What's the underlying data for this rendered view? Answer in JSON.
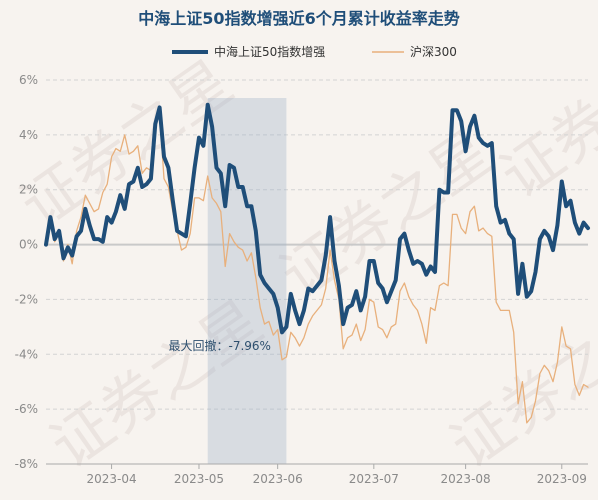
{
  "chart_data": {
    "type": "line",
    "title": "中海上证50指数增强近6个月累计收益率走势",
    "ylim": [
      -8,
      6
    ],
    "yticks": [
      -8,
      -6,
      -4,
      -2,
      0,
      2,
      4,
      6
    ],
    "ytick_labels": [
      "-8%",
      "-6%",
      "-4%",
      "-2%",
      "0%",
      "2%",
      "4%",
      "6%"
    ],
    "xticks": [
      {
        "label": "2023-04",
        "index": 15
      },
      {
        "label": "2023-05",
        "index": 35
      },
      {
        "label": "2023-06",
        "index": 53
      },
      {
        "label": "2023-07",
        "index": 75
      },
      {
        "label": "2023-08",
        "index": 96
      },
      {
        "label": "2023-09",
        "index": 118
      }
    ],
    "n_points": 125,
    "legend_position": "top-center",
    "grid": true,
    "series": [
      {
        "name": "中海上证50指数增强",
        "color": "#1f4e79",
        "values": [
          0,
          1,
          0.2,
          0.5,
          -0.5,
          -0.1,
          -0.4,
          0.3,
          0.5,
          1.3,
          0.7,
          0.2,
          0.2,
          0.1,
          1,
          0.8,
          1.2,
          1.8,
          1.3,
          2.2,
          2.3,
          2.8,
          2.1,
          2.2,
          2.4,
          4.4,
          5,
          3.2,
          2.8,
          1.6,
          0.5,
          0.4,
          0.3,
          1.5,
          2.8,
          3.9,
          3.6,
          5.1,
          4.3,
          2.8,
          2.6,
          1.4,
          2.9,
          2.8,
          2.1,
          2.1,
          1.4,
          1.4,
          0.5,
          -1.1,
          -1.4,
          -1.6,
          -1.8,
          -2.3,
          -3.2,
          -3,
          -1.8,
          -2.4,
          -2.9,
          -2.4,
          -1.6,
          -1.7,
          -1.5,
          -1.3,
          -0.4,
          1,
          -0.6,
          -1.5,
          -2.9,
          -2.3,
          -2.2,
          -1.7,
          -2.4,
          -1.9,
          -0.6,
          -0.6,
          -1.4,
          -1.6,
          -2.1,
          -1.7,
          -1.3,
          0.2,
          0.4,
          -0.2,
          -0.7,
          -0.6,
          -0.7,
          -1.1,
          -0.8,
          -1,
          2,
          1.9,
          1.9,
          4.9,
          4.9,
          4.5,
          3.4,
          4.3,
          4.7,
          3.9,
          3.7,
          3.6,
          3.7,
          1.4,
          0.8,
          0.9,
          0.4,
          0.2,
          -1.8,
          -0.7,
          -1.9,
          -1.7,
          -1,
          0.2,
          0.5,
          0.3,
          -0.2,
          0.7,
          2.3,
          1.4,
          1.6,
          0.8,
          0.4,
          0.8,
          0.6
        ]
      },
      {
        "name": "沪深300",
        "color": "#e8b07c",
        "values": [
          0,
          0.9,
          0.1,
          0.4,
          -0.6,
          0,
          -0.7,
          0.5,
          1,
          1.8,
          1.5,
          1.2,
          1.3,
          1.9,
          2.2,
          3.2,
          3.5,
          3.4,
          4,
          3.3,
          3.4,
          3.6,
          2.6,
          2.8,
          2.7,
          4.5,
          4.8,
          2.4,
          2.1,
          1.2,
          0.5,
          -0.2,
          -0.1,
          0.4,
          1.7,
          1.7,
          1.6,
          2.5,
          1.7,
          1.5,
          1.2,
          -0.8,
          0.4,
          0.1,
          -0.1,
          -0.2,
          -0.6,
          -0.3,
          -1.2,
          -2.3,
          -2.9,
          -2.8,
          -3.3,
          -3.1,
          -4.2,
          -4.1,
          -3.2,
          -3.4,
          -3.7,
          -3.4,
          -2.9,
          -2.6,
          -2.4,
          -2.2,
          -1.6,
          -0.2,
          -1.3,
          -2,
          -3.8,
          -3.4,
          -3.3,
          -2.9,
          -3.5,
          -3.1,
          -2,
          -2.1,
          -3,
          -3.1,
          -3.4,
          -3,
          -2.9,
          -1.7,
          -1.4,
          -1.9,
          -2.2,
          -2.4,
          -2.9,
          -3.6,
          -2.3,
          -2.4,
          -1.5,
          -1.4,
          -1.5,
          1.1,
          1.1,
          0.6,
          0.4,
          1.2,
          1.4,
          0.5,
          0.6,
          0.4,
          0.3,
          -2.1,
          -2.4,
          -2.4,
          -2.4,
          -3.2,
          -5.8,
          -5,
          -6.5,
          -6.3,
          -5.7,
          -4.7,
          -4.4,
          -4.6,
          -5,
          -4.3,
          -3,
          -3.7,
          -3.8,
          -5.1,
          -5.5,
          -5.1,
          -5.2
        ]
      }
    ],
    "annotation": {
      "text": "最大回撤：-7.96%",
      "start_index": 37,
      "end_index": 55
    }
  },
  "watermark": "证券之星"
}
